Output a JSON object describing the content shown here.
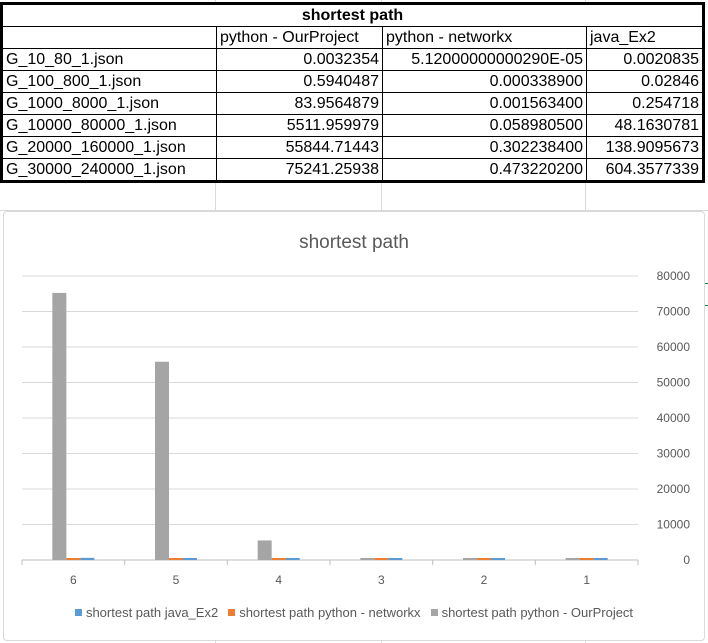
{
  "table": {
    "title": "shortest path",
    "headers": [
      "",
      "python - OurProject",
      "python - networkx",
      "java_Ex2"
    ],
    "rows": [
      [
        "G_10_80_1.json",
        "0.0032354",
        "5.12000000000290E-05",
        "0.0020835"
      ],
      [
        "G_100_800_1.json",
        "0.5940487",
        "0.000338900",
        "0.02846"
      ],
      [
        "G_1000_8000_1.json",
        "83.9564879",
        "0.001563400",
        "0.254718"
      ],
      [
        "G_10000_80000_1.json",
        "5511.959979",
        "0.058980500",
        "48.1630781"
      ],
      [
        "G_20000_160000_1.json",
        "55844.71443",
        "0.302238400",
        "138.9095673"
      ],
      [
        "G_30000_240000_1.json",
        "75241.25938",
        "0.473220200",
        "604.3577339"
      ]
    ]
  },
  "chart_data": {
    "type": "bar",
    "title": "shortest path",
    "categories": [
      "6",
      "5",
      "4",
      "3",
      "2",
      "1"
    ],
    "series": [
      {
        "name": "shortest path java_Ex2",
        "color": "#5b9bd5",
        "values": [
          604.3577339,
          138.9095673,
          48.1630781,
          0.254718,
          0.02846,
          0.0020835
        ]
      },
      {
        "name": "shortest path python - networkx",
        "color": "#ed7d31",
        "values": [
          0.4732202,
          0.3022384,
          0.0589805,
          0.0015634,
          0.0003389,
          5.12e-05
        ]
      },
      {
        "name": "shortest path python - OurProject",
        "color": "#a5a5a5",
        "values": [
          75241.25938,
          55844.71443,
          5511.959979,
          83.9564879,
          0.5940487,
          0.0032354
        ]
      }
    ],
    "y_axis_position": "right",
    "ylim": [
      0,
      80000
    ],
    "yticks": [
      0,
      10000,
      20000,
      30000,
      40000,
      50000,
      60000,
      70000,
      80000
    ],
    "grid": true,
    "legend": "bottom"
  }
}
